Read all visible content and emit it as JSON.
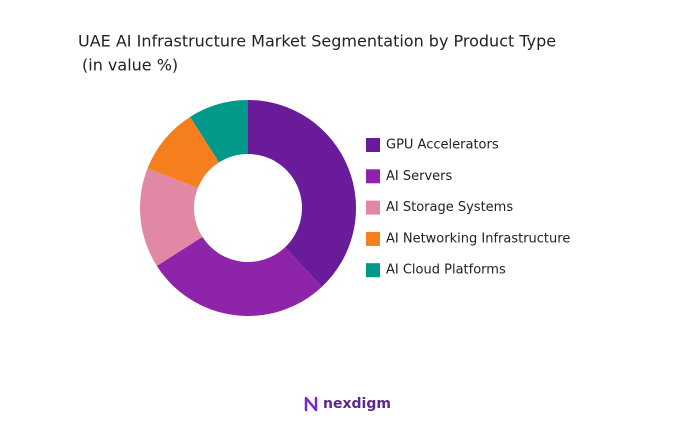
{
  "chart_data": {
    "type": "donut",
    "title": "UAE AI Infrastructure Market Segmentation by Product Type",
    "subtitle": "(in value %)",
    "categories": [
      "GPU Accelerators",
      "AI Servers",
      "AI Storage Systems",
      "AI Networking Infrastructure",
      "AI Cloud Platforms"
    ],
    "values": [
      38,
      28,
      15,
      10,
      9
    ],
    "colors": [
      "#6a1b9a",
      "#8e24aa",
      "#e088a4",
      "#f57f1f",
      "#00998a"
    ],
    "legend": "right"
  },
  "brand": "nexdigm"
}
